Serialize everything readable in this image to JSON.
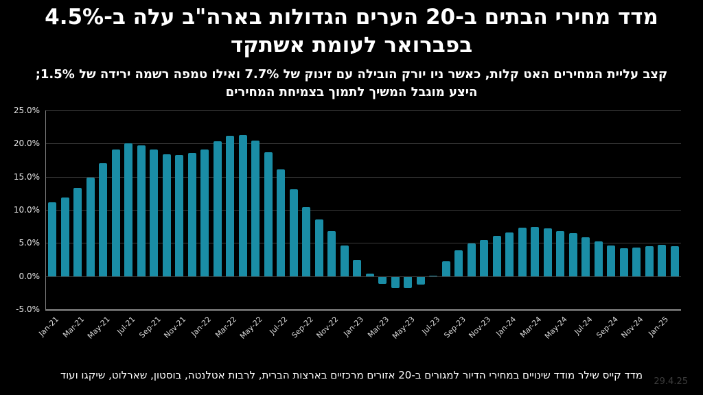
{
  "header": {
    "title": "מדד מחירי הבתים ב-20 הערים הגדולות בארה\"ב עלה ב-4.5%\nבפברואר לעומת אשתקד",
    "subtitle": "קצב עליית המחירים האט קלות, כאשר ניו יורק הובילה עם זינוק של 7.7% ואילו טמפה רשמה ירידה של 1.5%;\nהיצע מוגבל המשיך לתמוך בצמיחת המחירים"
  },
  "footer": {
    "caption": "מדד קייס שילר מודד שינויים במחירי הדיור למגורים ב-20 אזורים מרכזיים בארצות הברית, לרבות אטלנטה, בוסטון, שארלוט, שיקגו ועוד",
    "date": "29.4.25"
  },
  "colors": {
    "background": "#000000",
    "bar": "#1a8da6",
    "gridline": "#3d3d3d",
    "axis": "#7f7f7f",
    "tick_text": "#e6e6e6",
    "date_text": "#3c3c3c"
  },
  "chart_data": {
    "type": "bar",
    "title": "מדד מחירי הבתים ב-20 הערים הגדולות בארה\"ב עלה ב-4.5% בפברואר לעומת אשתקד",
    "xlabel": "",
    "ylabel": "",
    "ylim": [
      -5,
      25
    ],
    "grid": true,
    "legend": "none",
    "xtick_every": 2,
    "yticks": [
      {
        "value": 25,
        "label": "25.0%"
      },
      {
        "value": 20,
        "label": "20.0%"
      },
      {
        "value": 15,
        "label": "15.0%"
      },
      {
        "value": 10,
        "label": "10.0%"
      },
      {
        "value": 5,
        "label": "5.0%"
      },
      {
        "value": 0,
        "label": "0.0%"
      },
      {
        "value": -5,
        "label": "-5.0%"
      }
    ],
    "categories": [
      "Jan-21",
      "Feb-21",
      "Mar-21",
      "Apr-21",
      "May-21",
      "Jun-21",
      "Jul-21",
      "Aug-21",
      "Sep-21",
      "Oct-21",
      "Nov-21",
      "Dec-21",
      "Jan-22",
      "Feb-22",
      "Mar-22",
      "Apr-22",
      "May-22",
      "Jun-22",
      "Jul-22",
      "Aug-22",
      "Sep-22",
      "Oct-22",
      "Nov-22",
      "Dec-22",
      "Jan-23",
      "Feb-23",
      "Mar-23",
      "Apr-23",
      "May-23",
      "Jun-23",
      "Jul-23",
      "Aug-23",
      "Sep-23",
      "Oct-23",
      "Nov-23",
      "Dec-23",
      "Jan-24",
      "Feb-24",
      "Mar-24",
      "Apr-24",
      "May-24",
      "Jun-24",
      "Jul-24",
      "Aug-24",
      "Sep-24",
      "Oct-24",
      "Nov-24",
      "Dec-24",
      "Jan-25",
      "Feb-25"
    ],
    "values": [
      11.1,
      11.9,
      13.3,
      14.9,
      17.0,
      19.1,
      20.0,
      19.7,
      19.1,
      18.4,
      18.3,
      18.6,
      19.1,
      20.3,
      21.2,
      21.3,
      20.5,
      18.7,
      16.1,
      13.1,
      10.4,
      8.6,
      6.8,
      4.6,
      2.5,
      0.4,
      -1.1,
      -1.7,
      -1.7,
      -1.2,
      0.1,
      2.2,
      3.9,
      4.9,
      5.4,
      6.1,
      6.6,
      7.3,
      7.4,
      7.2,
      6.8,
      6.5,
      5.9,
      5.2,
      4.6,
      4.2,
      4.3,
      4.5,
      4.7,
      4.5
    ]
  }
}
